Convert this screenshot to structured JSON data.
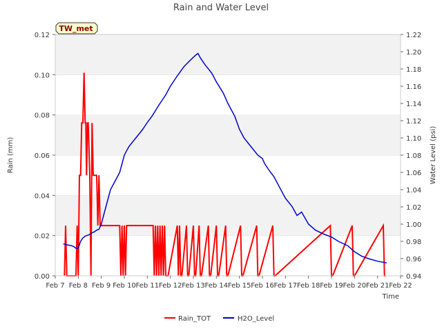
{
  "chart_data": {
    "type": "line",
    "title": "Rain and Water Level",
    "xlabel": "Time",
    "ylabel_left": "Rain (mm)",
    "ylabel_right": "Water Level (psi)",
    "site_badge": "TW_met",
    "xlim_day": [
      7,
      22
    ],
    "x_ticks": [
      "Feb 7",
      "Feb 8",
      "Feb 9",
      "Feb 10",
      "Feb 11",
      "Feb 12",
      "Feb 13",
      "Feb 14",
      "Feb 15",
      "Feb 16",
      "Feb 17",
      "Feb 18",
      "Feb 19",
      "Feb 20",
      "Feb 21",
      "Feb 22"
    ],
    "ylim_left": [
      0,
      0.12
    ],
    "yticks_left": [
      "0.00",
      "0.02",
      "0.04",
      "0.06",
      "0.08",
      "0.10",
      "0.12"
    ],
    "ylim_right": [
      0.94,
      1.22
    ],
    "yticks_right": [
      "0.94",
      "0.96",
      "0.98",
      "1.00",
      "1.02",
      "1.04",
      "1.06",
      "1.08",
      "1.10",
      "1.12",
      "1.14",
      "1.16",
      "1.18",
      "1.20",
      "1.22"
    ],
    "grid": "horizontal bands",
    "legend": "bottom-center",
    "colors": {
      "rain": "#ff0000",
      "level": "#0000cc",
      "band": "#f2f2f2",
      "badge_bg": "#ffffcc"
    },
    "series": [
      {
        "name": "Rain_TOT",
        "axis": "left",
        "x_day": [
          7.4,
          7.45,
          7.5,
          7.55,
          7.9,
          7.95,
          8.0,
          8.05,
          8.1,
          8.15,
          8.2,
          8.25,
          8.3,
          8.33,
          8.36,
          8.4,
          8.43,
          8.5,
          8.55,
          8.6,
          8.65,
          8.7,
          8.75,
          8.8,
          8.85,
          8.9,
          8.95,
          9.0,
          9.05,
          9.1,
          9.15,
          9.2,
          9.3,
          9.5,
          9.8,
          9.85,
          9.9,
          9.95,
          10.0,
          10.05,
          10.1,
          10.15,
          10.2,
          10.7,
          10.75,
          10.8,
          10.85,
          10.9,
          10.95,
          11.0,
          11.05,
          11.1,
          11.15,
          11.2,
          11.25,
          11.3,
          11.35,
          11.4,
          11.45,
          11.5,
          11.55,
          11.6,
          11.65,
          11.7,
          11.75,
          11.8,
          11.85,
          11.9,
          12.3,
          12.35,
          12.4,
          12.45,
          12.5,
          12.7,
          12.75,
          12.8,
          13.0,
          13.05,
          13.1,
          13.25,
          13.3,
          13.35,
          13.65,
          13.7,
          13.75,
          14.0,
          14.05,
          14.1,
          14.4,
          14.45,
          14.5,
          15.05,
          15.1,
          15.15,
          15.75,
          15.8,
          15.85,
          16.45,
          16.5,
          16.55,
          18.95,
          19.0,
          19.05,
          19.9,
          19.95,
          20.0,
          21.25,
          21.3,
          21.35
        ],
        "values": [
          0,
          0.025,
          0,
          0,
          0,
          0.025,
          0,
          0.05,
          0.05,
          0.076,
          0.076,
          0.101,
          0.076,
          0.076,
          0.05,
          0.076,
          0.076,
          0.05,
          0,
          0.076,
          0.05,
          0.05,
          0.05,
          0.05,
          0.025,
          0.05,
          0.025,
          0.025,
          0.025,
          0.025,
          0.025,
          0.025,
          0.025,
          0.025,
          0.025,
          0,
          0.025,
          0,
          0.025,
          0,
          0.025,
          0.025,
          0.025,
          0.025,
          0.025,
          0.025,
          0.025,
          0.025,
          0.025,
          0.025,
          0.025,
          0.025,
          0.025,
          0.025,
          0.025,
          0,
          0.025,
          0,
          0.025,
          0,
          0.025,
          0,
          0.025,
          0,
          0.025,
          0,
          0,
          0,
          0.025,
          0,
          0.025,
          0,
          0,
          0.025,
          0,
          0,
          0.025,
          0,
          0,
          0.025,
          0,
          0,
          0.025,
          0,
          0,
          0.025,
          0,
          0,
          0.025,
          0,
          0,
          0.025,
          0,
          0,
          0.025,
          0,
          0,
          0.025,
          0,
          0,
          0.025,
          0,
          0,
          0.025,
          0,
          0,
          0.025,
          0,
          0
        ]
      },
      {
        "name": "H2O_Level",
        "axis": "right",
        "x_day": [
          7.35,
          7.5,
          7.7,
          7.8,
          7.9,
          8.0,
          8.1,
          8.2,
          8.3,
          8.4,
          8.5,
          8.6,
          8.7,
          8.8,
          8.9,
          9.0,
          9.2,
          9.4,
          9.6,
          9.8,
          9.9,
          10.0,
          10.1,
          10.2,
          10.5,
          10.8,
          11.0,
          11.2,
          11.5,
          11.8,
          12.0,
          12.3,
          12.6,
          12.9,
          13.1,
          13.2,
          13.3,
          13.5,
          13.8,
          14.0,
          14.3,
          14.5,
          14.8,
          15.0,
          15.2,
          15.5,
          15.8,
          15.9,
          16.0,
          16.1,
          16.3,
          16.5,
          16.7,
          17.0,
          17.3,
          17.5,
          17.7,
          18.0,
          18.3,
          18.7,
          19.0,
          19.3,
          19.7,
          20.0,
          20.3,
          20.6,
          21.0,
          21.4
        ],
        "values": [
          0.977,
          0.976,
          0.975,
          0.974,
          0.972,
          0.972,
          0.98,
          0.984,
          0.986,
          0.987,
          0.988,
          0.99,
          0.991,
          0.993,
          0.994,
          1.0,
          1.02,
          1.04,
          1.05,
          1.06,
          1.07,
          1.08,
          1.085,
          1.09,
          1.1,
          1.11,
          1.118,
          1.125,
          1.138,
          1.15,
          1.16,
          1.172,
          1.183,
          1.191,
          1.196,
          1.198,
          1.193,
          1.185,
          1.175,
          1.165,
          1.152,
          1.14,
          1.125,
          1.11,
          1.1,
          1.09,
          1.08,
          1.078,
          1.076,
          1.07,
          1.062,
          1.055,
          1.045,
          1.03,
          1.02,
          1.01,
          1.014,
          1.0,
          0.993,
          0.988,
          0.985,
          0.98,
          0.975,
          0.968,
          0.963,
          0.96,
          0.957,
          0.955
        ]
      }
    ]
  }
}
